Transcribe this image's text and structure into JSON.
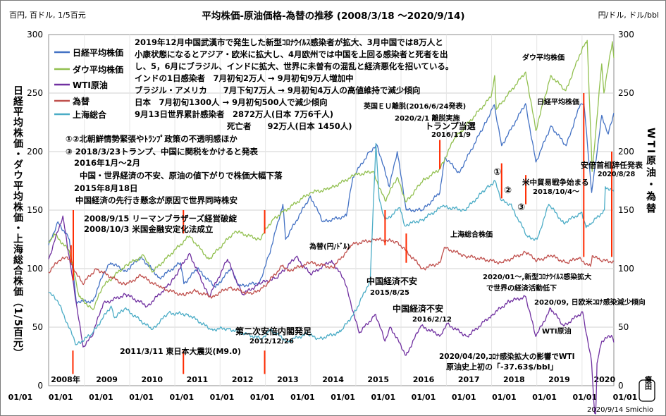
{
  "header": {
    "unit_left": "百円, 百ドル, 1/5百元",
    "title": "平均株価-原油価格-為替の推移 (2008/3/18 ～2020/9/14)",
    "unit_right": "円/ドル, ドル/bbl"
  },
  "axis_titles": {
    "left": "日経平均株価・ダウ平均株価・上海総合株価（1/5百元）",
    "right": "WTI原油・為替"
  },
  "footer": {
    "credit": "2020/9/14 Smichio",
    "seal": "瘦田"
  },
  "legend": [
    {
      "name": "日経平均株価",
      "color": "#4472c4"
    },
    {
      "name": "ダウ平均株価",
      "color": "#92c050"
    },
    {
      "name": "WTI原油",
      "color": "#7030a0"
    },
    {
      "name": "為替",
      "color": "#c0504d"
    },
    {
      "name": "上海総合",
      "color": "#4bacc6"
    }
  ],
  "notes": {
    "covid": [
      "2019年12月中国武漢市で発生した新型ｺﾛﾅｳｲﾙｽ感染者が拡大、3月中国では8万人と",
      "小康状態になるとアジア・欧米に拡大し、4月欧州では中国を上回る感染者と死者を出",
      "し、5，6月にブラジル、インドに拡大、世界に未曽有の混乱と経済悪化を招いている。",
      "インドの1日感染者　7月初旬2万人 → 9月初旬9万人増加中",
      "ブラジル・アメリカ　　7月下旬7万人 → 9月初旬4万人の高値維持で減少傾向",
      "日本　7月初旬1300人 → 9月初旬500人で減少傾向",
      "9月13日世界累計感染者　2872万人(日本 7万6千人)",
      "死亡者　　92万人(日本 1450人)"
    ],
    "left": [
      "①②北朝鮮情勢緊張やﾄﾗﾝﾌﾟ政策の不透明感ほか",
      "③ 2018/3/23トランプ、中国に関税をかけると発表",
      "2016年1月～2月",
      "中国・世界経済の不安、原油の値下がりで株価大幅下落",
      "2015年8月18日",
      "中国経済の先行き懸念が原因で世界同時株安",
      "2008/9/15 リーマンブラザーズ経営破綻",
      "2008/10/3 米国金融安定化法成立"
    ],
    "events": [
      "2011/3/11 東日本大震災(M9.0)",
      "第二次安倍内閣発足",
      "2012/12/26",
      "中国経済不安",
      "2015/8/25",
      "中国経済不安",
      "2016/2/12",
      "英国ＥＵ離脱(2016/6/24発表)",
      "2020/2/1 離脱実施",
      "トランプ当選",
      "2016/11/9",
      "米中貿易戦争始まる",
      "2018/10/4～",
      "2020/01～,新型ｺﾛﾅｳｲﾙｽ感染拡大",
      "で世界の経済活動低下",
      "2020/09, 日欧米ｺﾛﾅ感染減少傾向",
      "2020/04/20,ｺﾛﾅ感染拡大の影響でWTI",
      "原油史上初の「-37.63$/bbl」",
      "安倍首相辞任発表",
      "2020/8/28"
    ],
    "series_labels": [
      "ダウ平均株価",
      "日経平均株価",
      "上海総合株価",
      "為替(円/ﾄﾞﾙ)",
      "WTI原油"
    ],
    "circles": [
      "①",
      "②",
      "③"
    ]
  },
  "chart_data": {
    "type": "line",
    "x_start": "2008/03/18",
    "x_end": "2020/09/14",
    "year_labels": [
      "2008年",
      "2009",
      "2010",
      "2011",
      "2012",
      "2013",
      "2014",
      "2015",
      "2016",
      "2017",
      "2018",
      "2019",
      "2020"
    ],
    "x_tick_label": "01/01",
    "y_left": {
      "min": 0,
      "max": 300,
      "ticks": [
        0,
        50,
        100,
        150,
        200,
        250,
        300
      ]
    },
    "y_right": {
      "min": 0,
      "max": 300,
      "ticks": [
        0,
        50,
        100,
        150,
        200,
        250,
        300
      ]
    },
    "grid": true,
    "series": [
      {
        "name": "日経平均株価",
        "color": "#4472c4",
        "points": [
          [
            "2008/03/18",
            120
          ],
          [
            "2008/06/01",
            140
          ],
          [
            "2008/09/01",
            125
          ],
          [
            "2008/10/27",
            72
          ],
          [
            "2009/03/10",
            72
          ],
          [
            "2009/06/01",
            95
          ],
          [
            "2009/08/01",
            105
          ],
          [
            "2009/12/01",
            98
          ],
          [
            "2010/04/01",
            110
          ],
          [
            "2010/09/01",
            92
          ],
          [
            "2011/02/15",
            105
          ],
          [
            "2011/03/15",
            87
          ],
          [
            "2011/07/01",
            100
          ],
          [
            "2011/11/25",
            84
          ],
          [
            "2012/03/27",
            100
          ],
          [
            "2012/06/04",
            85
          ],
          [
            "2012/11/14",
            88
          ],
          [
            "2013/02/01",
            112
          ],
          [
            "2013/05/22",
            155
          ],
          [
            "2013/06/13",
            125
          ],
          [
            "2013/12/30",
            162
          ],
          [
            "2014/04/11",
            140
          ],
          [
            "2014/10/17",
            145
          ],
          [
            "2014/12/08",
            178
          ],
          [
            "2015/04/22",
            200
          ],
          [
            "2015/06/24",
            205
          ],
          [
            "2015/09/29",
            170
          ],
          [
            "2015/12/01",
            200
          ],
          [
            "2016/02/12",
            150
          ],
          [
            "2016/06/24",
            150
          ],
          [
            "2016/11/09",
            165
          ],
          [
            "2016/12/20",
            195
          ],
          [
            "2017/04/14",
            182
          ],
          [
            "2017/10/31",
            222
          ],
          [
            "2018/01/23",
            240
          ],
          [
            "2018/03/23",
            205
          ],
          [
            "2018/10/02",
            241
          ],
          [
            "2018/12/25",
            191
          ],
          [
            "2019/04/25",
            222
          ],
          [
            "2019/08/26",
            205
          ],
          [
            "2019/12/17",
            240
          ],
          [
            "2020/01/17",
            241
          ],
          [
            "2020/03/19",
            165
          ],
          [
            "2020/06/08",
            231
          ],
          [
            "2020/07/31",
            215
          ],
          [
            "2020/09/14",
            233
          ]
        ]
      },
      {
        "name": "ダウ平均株価",
        "color": "#92c050",
        "points": [
          [
            "2008/03/18",
            122
          ],
          [
            "2008/05/01",
            130
          ],
          [
            "2008/09/01",
            115
          ],
          [
            "2008/11/20",
            76
          ],
          [
            "2009/03/09",
            65
          ],
          [
            "2009/06/01",
            85
          ],
          [
            "2009/12/01",
            103
          ],
          [
            "2010/04/26",
            111
          ],
          [
            "2010/07/02",
            97
          ],
          [
            "2011/04/29",
            128
          ],
          [
            "2011/10/03",
            108
          ],
          [
            "2012/05/01",
            132
          ],
          [
            "2012/11/15",
            125
          ],
          [
            "2013/03/01",
            142
          ],
          [
            "2013/12/30",
            165
          ],
          [
            "2014/06/01",
            168
          ],
          [
            "2014/12/26",
            180
          ],
          [
            "2015/05/19",
            183
          ],
          [
            "2015/08/25",
            158
          ],
          [
            "2015/12/01",
            178
          ],
          [
            "2016/02/11",
            157
          ],
          [
            "2016/06/24",
            175
          ],
          [
            "2016/11/09",
            185
          ],
          [
            "2017/03/01",
            210
          ],
          [
            "2017/12/29",
            247
          ],
          [
            "2018/01/26",
            265
          ],
          [
            "2018/02/08",
            236
          ],
          [
            "2018/10/03",
            268
          ],
          [
            "2018/12/24",
            218
          ],
          [
            "2019/04/23",
            265
          ],
          [
            "2019/08/23",
            252
          ],
          [
            "2020/01/02",
            288
          ],
          [
            "2020/02/12",
            295
          ],
          [
            "2020/03/23",
            183
          ],
          [
            "2020/06/08",
            275
          ],
          [
            "2020/06/26",
            250
          ],
          [
            "2020/09/02",
            294
          ],
          [
            "2020/09/14",
            280
          ]
        ]
      },
      {
        "name": "WTI原油",
        "color": "#7030a0",
        "points": [
          [
            "2008/03/18",
            108
          ],
          [
            "2008/07/11",
            145
          ],
          [
            "2008/09/15",
            100
          ],
          [
            "2008/12/21",
            33
          ],
          [
            "2009/03/01",
            42
          ],
          [
            "2009/06/01",
            70
          ],
          [
            "2009/12/01",
            78
          ],
          [
            "2010/05/25",
            68
          ],
          [
            "2010/12/01",
            88
          ],
          [
            "2011/04/29",
            113
          ],
          [
            "2011/10/04",
            76
          ],
          [
            "2012/03/01",
            108
          ],
          [
            "2012/06/28",
            78
          ],
          [
            "2012/12/01",
            88
          ],
          [
            "2013/04/01",
            92
          ],
          [
            "2013/09/06",
            110
          ],
          [
            "2014/01/01",
            95
          ],
          [
            "2014/06/20",
            107
          ],
          [
            "2014/10/01",
            90
          ],
          [
            "2015/01/28",
            45
          ],
          [
            "2015/06/10",
            61
          ],
          [
            "2015/08/24",
            38
          ],
          [
            "2015/10/09",
            50
          ],
          [
            "2016/02/11",
            26
          ],
          [
            "2016/06/08",
            51
          ],
          [
            "2016/11/14",
            43
          ],
          [
            "2017/01/03",
            53
          ],
          [
            "2017/06/21",
            42
          ],
          [
            "2017/12/29",
            60
          ],
          [
            "2018/05/22",
            72
          ],
          [
            "2018/10/03",
            76
          ],
          [
            "2018/12/24",
            42
          ],
          [
            "2019/04/23",
            66
          ],
          [
            "2019/08/07",
            51
          ],
          [
            "2020/01/06",
            63
          ],
          [
            "2020/03/18",
            20
          ],
          [
            "2020/04/20",
            -37.63
          ],
          [
            "2020/05/01",
            19
          ],
          [
            "2020/06/08",
            38
          ],
          [
            "2020/08/26",
            43
          ],
          [
            "2020/09/14",
            37
          ]
        ]
      },
      {
        "name": "為替",
        "color": "#c0504d",
        "points": [
          [
            "2008/03/18",
            97
          ],
          [
            "2008/06/01",
            106
          ],
          [
            "2008/08/15",
            110
          ],
          [
            "2008/12/17",
            87
          ],
          [
            "2009/04/06",
            100
          ],
          [
            "2009/11/27",
            86
          ],
          [
            "2010/04/02",
            94
          ],
          [
            "2010/09/01",
            84
          ],
          [
            "2011/03/17",
            77
          ],
          [
            "2011/06/01",
            81
          ],
          [
            "2011/10/31",
            76
          ],
          [
            "2012/03/14",
            84
          ],
          [
            "2012/09/13",
            78
          ],
          [
            "2012/12/26",
            85
          ],
          [
            "2013/05/22",
            103
          ],
          [
            "2013/07/01",
            98
          ],
          [
            "2013/12/31",
            105
          ],
          [
            "2014/07/01",
            101
          ],
          [
            "2014/12/08",
            121
          ],
          [
            "2015/06/05",
            125
          ],
          [
            "2015/12/01",
            123
          ],
          [
            "2016/06/24",
            100
          ],
          [
            "2016/11/08",
            105
          ],
          [
            "2016/12/15",
            118
          ],
          [
            "2017/06/01",
            111
          ],
          [
            "2018/03/23",
            105
          ],
          [
            "2018/10/04",
            114
          ],
          [
            "2019/01/03",
            107
          ],
          [
            "2019/05/01",
            111
          ],
          [
            "2019/08/26",
            105
          ],
          [
            "2019/12/01",
            109
          ],
          [
            "2020/03/09",
            102
          ],
          [
            "2020/03/24",
            111
          ],
          [
            "2020/06/01",
            107
          ],
          [
            "2020/09/14",
            106
          ]
        ]
      },
      {
        "name": "上海総合",
        "color": "#4bacc6",
        "points": [
          [
            "2008/03/18",
            80
          ],
          [
            "2008/06/01",
            72
          ],
          [
            "2008/10/28",
            35
          ],
          [
            "2009/03/01",
            44
          ],
          [
            "2009/08/04",
            68
          ],
          [
            "2009/09/01",
            58
          ],
          [
            "2009/11/24",
            66
          ],
          [
            "2010/07/02",
            48
          ],
          [
            "2010/11/08",
            62
          ],
          [
            "2011/04/18",
            61
          ],
          [
            "2011/10/21",
            48
          ],
          [
            "2012/03/01",
            49
          ],
          [
            "2012/12/03",
            40
          ],
          [
            "2013/02/06",
            48
          ],
          [
            "2013/06/25",
            38
          ],
          [
            "2013/12/01",
            44
          ],
          [
            "2014/03/11",
            40
          ],
          [
            "2014/09/01",
            46
          ],
          [
            "2014/12/31",
            64
          ],
          [
            "2015/04/27",
            90
          ],
          [
            "2015/06/12",
            207
          ],
          [
            "2015/07/08",
            160
          ],
          [
            "2015/08/26",
            141
          ],
          [
            "2015/12/23",
            152
          ],
          [
            "2016/01/28",
            137
          ],
          [
            "2016/06/24",
            142
          ],
          [
            "2016/11/29",
            153
          ],
          [
            "2017/06/01",
            150
          ],
          [
            "2017/11/13",
            168
          ],
          [
            "2018/01/29",
            175
          ],
          [
            "2018/03/23",
            158
          ],
          [
            "2018/06/01",
            155
          ],
          [
            "2018/10/19",
            127
          ],
          [
            "2019/01/03",
            125
          ],
          [
            "2019/04/08",
            155
          ],
          [
            "2019/08/06",
            139
          ],
          [
            "2019/12/31",
            148
          ],
          [
            "2020/02/03",
            135
          ],
          [
            "2020/03/19",
            139
          ],
          [
            "2020/06/30",
            150
          ],
          [
            "2020/07/07",
            170
          ],
          [
            "2020/09/14",
            166
          ]
        ]
      }
    ]
  }
}
